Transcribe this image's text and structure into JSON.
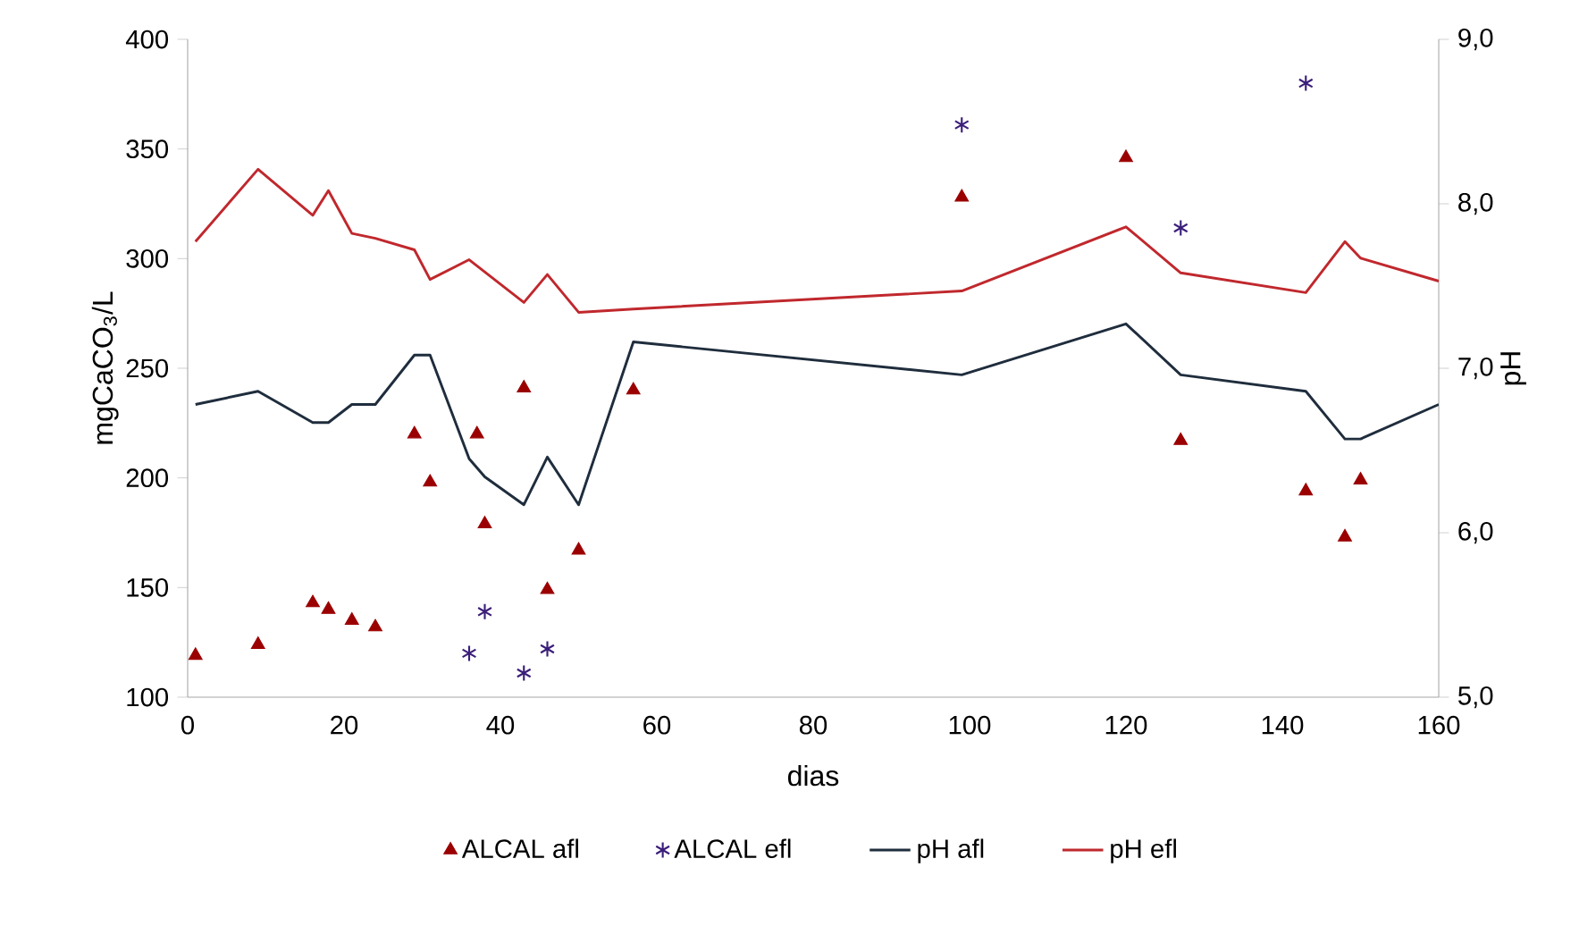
{
  "chart_data": {
    "type": "scatter",
    "xlabel": "dias",
    "ylabel": "mgCaCO$_{3}$/L",
    "y2label": "pH",
    "xlim": [
      0,
      160
    ],
    "xticks": [
      0,
      20,
      40,
      60,
      80,
      100,
      120,
      140,
      160
    ],
    "ylim": [
      100,
      400
    ],
    "yticks": [
      100,
      150,
      200,
      250,
      300,
      350,
      400
    ],
    "y2lim": [
      5,
      9
    ],
    "y2ticks": [
      {
        "value": 5,
        "label": "5,0"
      },
      {
        "value": 6,
        "label": "6,0"
      },
      {
        "value": 7,
        "label": "7,0"
      },
      {
        "value": 8,
        "label": "8,0"
      },
      {
        "value": 9,
        "label": "9,0"
      }
    ],
    "legend": "bottom",
    "grid": false,
    "series": [
      {
        "name": "ALCAL afl",
        "marker": "triangle",
        "color": "#9b0000",
        "x": [
          1,
          9,
          16,
          18,
          21,
          24,
          29,
          31,
          37,
          38,
          43,
          46,
          50,
          57,
          99,
          120,
          127,
          143,
          148,
          150
        ],
        "values": [
          119,
          124,
          143,
          140,
          135,
          132,
          220,
          198,
          220,
          179,
          241,
          149,
          167,
          240,
          328,
          346,
          217,
          194,
          173,
          199
        ]
      },
      {
        "name": "ALCAL efl",
        "marker": "cross",
        "color": "#3b1e7a",
        "x": [
          36,
          38,
          43,
          46,
          99,
          127,
          143
        ],
        "values": [
          120,
          139,
          111,
          122,
          361,
          314,
          380
        ]
      },
      {
        "name": "pH afl",
        "type": "line",
        "axis": "y2",
        "marker": "none",
        "color": "#1f2d3d",
        "x": [
          1,
          9,
          16,
          18,
          21,
          24,
          29,
          31,
          36,
          38,
          43,
          46,
          50,
          57,
          99,
          120,
          127,
          143,
          148,
          150,
          160
        ],
        "values": [
          6.78,
          6.86,
          6.67,
          6.67,
          6.78,
          6.78,
          7.08,
          7.08,
          6.45,
          6.34,
          6.17,
          6.46,
          6.17,
          7.16,
          6.96,
          7.27,
          6.96,
          6.86,
          6.57,
          6.57,
          6.78
        ]
      },
      {
        "name": "pH efl",
        "type": "line",
        "axis": "y2",
        "marker": "none",
        "color": "#c0282d",
        "x": [
          1,
          9,
          16,
          18,
          21,
          24,
          29,
          31,
          36,
          43,
          46,
          50,
          57,
          99,
          120,
          127,
          143,
          148,
          150,
          160
        ],
        "values": [
          7.77,
          8.21,
          7.93,
          8.08,
          7.82,
          7.79,
          7.72,
          7.54,
          7.66,
          7.4,
          7.57,
          7.34,
          7.36,
          7.47,
          7.86,
          7.58,
          7.46,
          7.77,
          7.67,
          7.53
        ]
      }
    ]
  }
}
